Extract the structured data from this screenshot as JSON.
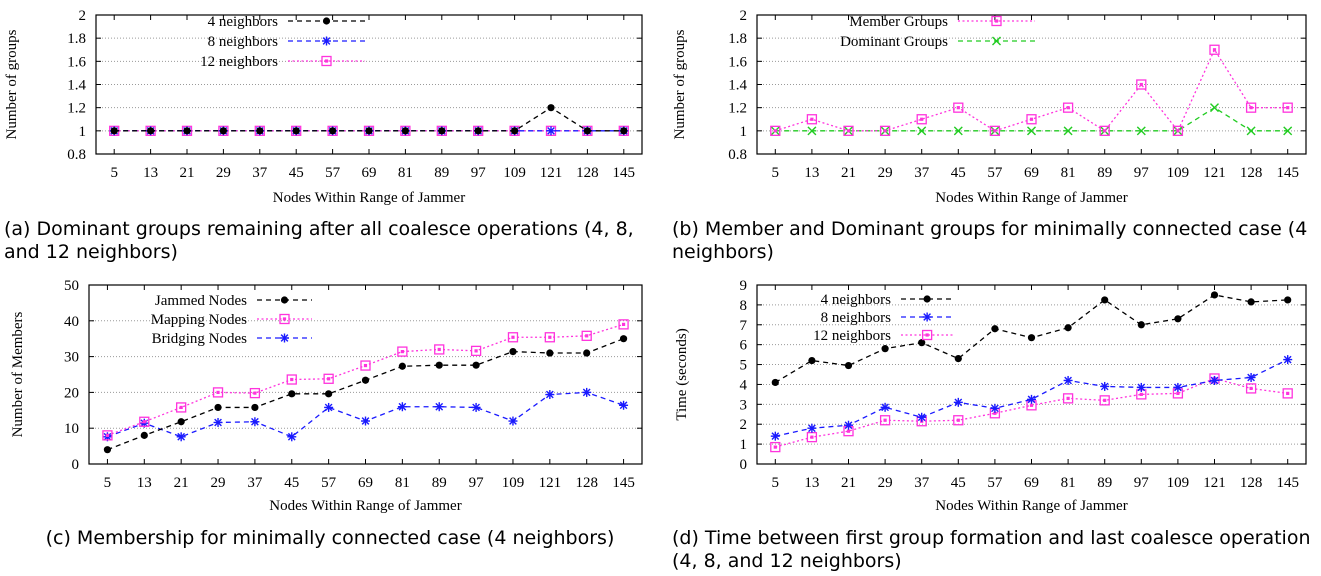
{
  "colors": {
    "black": "#000000",
    "blue": "#1a1aff",
    "magenta": "#ff33dd",
    "green": "#22cc22",
    "grid": "#9a9a9a"
  },
  "chart_data": [
    {
      "id": "a",
      "type": "line",
      "caption": "(a) Dominant groups remaining after all coalesce operations (4, 8, and 12 neighbors)",
      "xlabel": "Nodes Within Range of Jammer",
      "ylabel": "Number of groups",
      "categories": [
        "5",
        "13",
        "21",
        "29",
        "37",
        "45",
        "57",
        "69",
        "81",
        "89",
        "97",
        "109",
        "121",
        "128",
        "145"
      ],
      "ylim": [
        0.8,
        2
      ],
      "yticks": [
        "0.8",
        "1",
        "1.2",
        "1.4",
        "1.6",
        "1.8",
        "2"
      ],
      "grid": true,
      "legend_position": "top-left",
      "series": [
        {
          "name": "4 neighbors",
          "color": "#000000",
          "marker": "dot",
          "values": [
            1,
            1,
            1,
            1,
            1,
            1,
            1,
            1,
            1,
            1,
            1,
            1,
            1.2,
            1,
            1
          ]
        },
        {
          "name": "8 neighbors",
          "color": "#1a1aff",
          "marker": "star",
          "values": [
            1,
            1,
            1,
            1,
            1,
            1,
            1,
            1,
            1,
            1,
            1,
            1,
            1,
            1,
            1
          ]
        },
        {
          "name": "12 neighbors",
          "color": "#ff33dd",
          "marker": "square",
          "values": [
            1,
            1,
            1,
            1,
            1,
            1,
            1,
            1,
            1,
            1,
            1,
            1,
            1,
            1,
            1
          ]
        }
      ]
    },
    {
      "id": "b",
      "type": "line",
      "caption": "(b) Member and Dominant groups for minimally connected case (4 neighbors)",
      "xlabel": "Nodes Within Range of Jammer",
      "ylabel": "Number of groups",
      "categories": [
        "5",
        "13",
        "21",
        "29",
        "37",
        "45",
        "57",
        "69",
        "81",
        "89",
        "97",
        "109",
        "121",
        "128",
        "145"
      ],
      "ylim": [
        0.8,
        2
      ],
      "yticks": [
        "0.8",
        "1",
        "1.2",
        "1.4",
        "1.6",
        "1.8",
        "2"
      ],
      "grid": true,
      "legend_position": "top-left",
      "series": [
        {
          "name": "Member Groups",
          "color": "#ff33dd",
          "marker": "square",
          "values": [
            1,
            1.1,
            1,
            1,
            1.1,
            1.2,
            1,
            1.1,
            1.2,
            1,
            1.4,
            1,
            1.7,
            1.2,
            1.2
          ]
        },
        {
          "name": "Dominant Groups",
          "color": "#22cc22",
          "marker": "x",
          "values": [
            1,
            1,
            1,
            1,
            1,
            1,
            1,
            1,
            1,
            1,
            1,
            1,
            1.2,
            1,
            1
          ]
        }
      ]
    },
    {
      "id": "c",
      "type": "line",
      "caption": "(c) Membership for minimally connected case (4 neighbors)",
      "xlabel": "Nodes Within Range of Jammer",
      "ylabel": "Number of Members",
      "categories": [
        "5",
        "13",
        "21",
        "29",
        "37",
        "45",
        "57",
        "69",
        "81",
        "89",
        "97",
        "109",
        "121",
        "128",
        "145"
      ],
      "ylim": [
        0,
        50
      ],
      "yticks": [
        "0",
        "10",
        "20",
        "30",
        "40",
        "50"
      ],
      "grid": true,
      "legend_position": "top-left",
      "series": [
        {
          "name": "Jammed Nodes",
          "color": "#000000",
          "marker": "dot",
          "values": [
            4,
            8,
            11.8,
            15.8,
            15.8,
            19.6,
            19.6,
            23.4,
            27.3,
            27.6,
            27.6,
            31.4,
            31,
            31,
            35
          ]
        },
        {
          "name": "Mapping Nodes",
          "color": "#ff33dd",
          "marker": "square",
          "values": [
            8,
            11.8,
            15.8,
            20,
            19.8,
            23.6,
            23.8,
            27.5,
            31.4,
            32,
            31.6,
            35.4,
            35.4,
            35.8,
            39
          ]
        },
        {
          "name": "Bridging Nodes",
          "color": "#1a1aff",
          "marker": "star",
          "values": [
            7.6,
            11.4,
            7.6,
            11.6,
            11.8,
            7.6,
            15.8,
            12,
            16,
            16,
            15.8,
            12,
            19.4,
            20,
            16.4
          ]
        }
      ]
    },
    {
      "id": "d",
      "type": "line",
      "caption": "(d) Time between first group formation and last coalesce operation (4, 8, and 12 neighbors)",
      "xlabel": "Nodes Within Range of Jammer",
      "ylabel": "Time (seconds)",
      "categories": [
        "5",
        "13",
        "21",
        "29",
        "37",
        "45",
        "57",
        "69",
        "81",
        "89",
        "97",
        "109",
        "121",
        "128",
        "145"
      ],
      "ylim": [
        0,
        9
      ],
      "yticks": [
        "0",
        "1",
        "2",
        "3",
        "4",
        "5",
        "6",
        "7",
        "8",
        "9"
      ],
      "grid": true,
      "legend_position": "top-left",
      "series": [
        {
          "name": "4 neighbors",
          "color": "#000000",
          "marker": "dot",
          "values": [
            4.1,
            5.2,
            4.95,
            5.8,
            6.1,
            5.3,
            6.8,
            6.35,
            6.85,
            8.25,
            7,
            7.3,
            8.5,
            8.15,
            8.25
          ]
        },
        {
          "name": "8 neighbors",
          "color": "#1a1aff",
          "marker": "star",
          "values": [
            1.4,
            1.8,
            1.95,
            2.85,
            2.35,
            3.1,
            2.8,
            3.25,
            4.2,
            3.9,
            3.85,
            3.85,
            4.2,
            4.35,
            5.25
          ]
        },
        {
          "name": "12 neighbors",
          "color": "#ff33dd",
          "marker": "square",
          "values": [
            0.85,
            1.35,
            1.65,
            2.2,
            2.15,
            2.2,
            2.55,
            2.95,
            3.3,
            3.2,
            3.5,
            3.55,
            4.3,
            3.8,
            3.55
          ]
        }
      ]
    }
  ]
}
